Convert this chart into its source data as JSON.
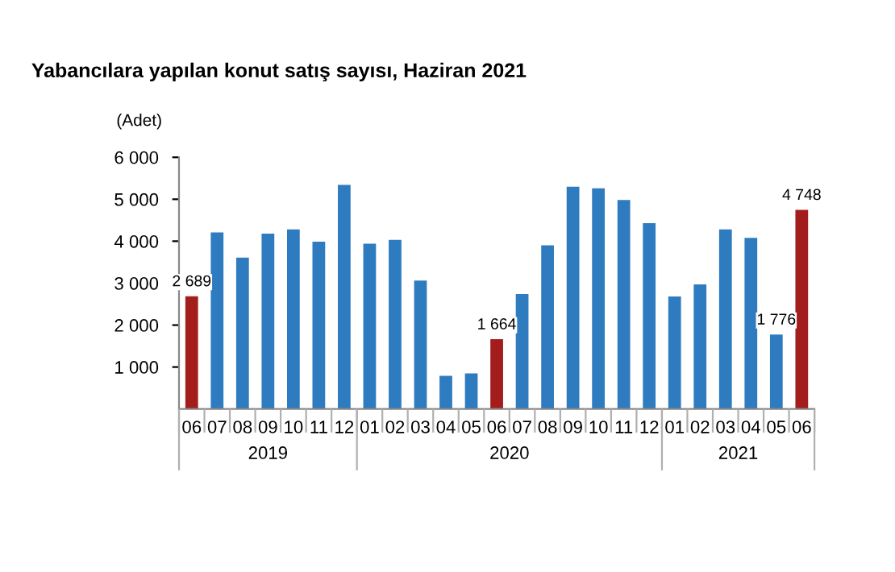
{
  "chart_data": {
    "type": "bar",
    "title": "Yabancılara yapılan konut satış sayısı, Haziran 2021",
    "ylabel": "(Adet)",
    "categories": [
      "06",
      "07",
      "08",
      "09",
      "10",
      "11",
      "12",
      "01",
      "02",
      "03",
      "04",
      "05",
      "06",
      "07",
      "08",
      "09",
      "10",
      "11",
      "12",
      "01",
      "02",
      "03",
      "04",
      "05",
      "06"
    ],
    "values": [
      2689,
      4210,
      3610,
      4180,
      4280,
      3990,
      5340,
      3940,
      4030,
      3060,
      790,
      850,
      1664,
      2740,
      3900,
      5300,
      5260,
      4980,
      4430,
      2680,
      2970,
      4280,
      4080,
      1776,
      4748
    ],
    "colors": [
      "#a31d1d",
      "#2e7bc0",
      "#2e7bc0",
      "#2e7bc0",
      "#2e7bc0",
      "#2e7bc0",
      "#2e7bc0",
      "#2e7bc0",
      "#2e7bc0",
      "#2e7bc0",
      "#2e7bc0",
      "#2e7bc0",
      "#a31d1d",
      "#2e7bc0",
      "#2e7bc0",
      "#2e7bc0",
      "#2e7bc0",
      "#2e7bc0",
      "#2e7bc0",
      "#2e7bc0",
      "#2e7bc0",
      "#2e7bc0",
      "#2e7bc0",
      "#2e7bc0",
      "#a31d1d"
    ],
    "value_labels": [
      "2 689",
      null,
      null,
      null,
      null,
      null,
      null,
      null,
      null,
      null,
      null,
      null,
      "1 664",
      null,
      null,
      null,
      null,
      null,
      null,
      null,
      null,
      null,
      null,
      "1 776",
      "4 748"
    ],
    "ylim": [
      0,
      6000
    ],
    "yticks": [
      {
        "value": 1000,
        "label": "1 000"
      },
      {
        "value": 2000,
        "label": "2 000"
      },
      {
        "value": 3000,
        "label": "3 000"
      },
      {
        "value": 4000,
        "label": "4 000"
      },
      {
        "value": 5000,
        "label": "5 000"
      },
      {
        "value": 6000,
        "label": "6 000"
      }
    ],
    "annotations": [
      "2019",
      "2020",
      "2021"
    ],
    "grid": false,
    "legend": false
  }
}
